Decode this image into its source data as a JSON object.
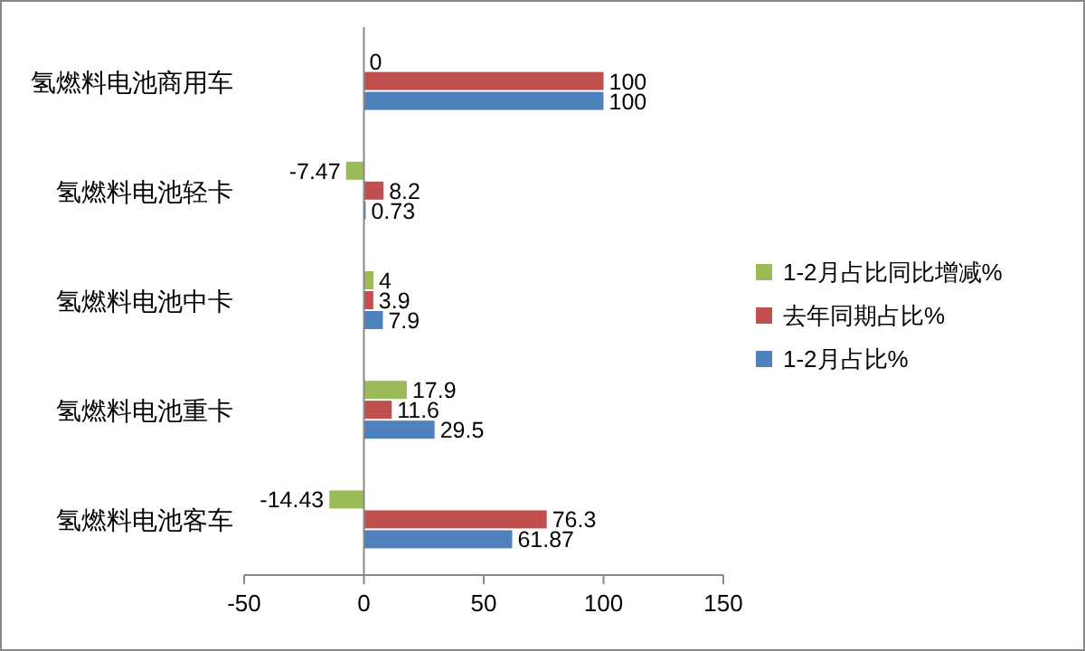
{
  "chart_data": {
    "type": "bar",
    "orientation": "horizontal",
    "categories": [
      "氢燃料电池商用车",
      "氢燃料电池轻卡",
      "氢燃料电池中卡",
      "氢燃料电池重卡",
      "氢燃料电池客车"
    ],
    "series": [
      {
        "name": "1-2月占比同比增减%",
        "color": "#9bbb59",
        "values": [
          0,
          -7.47,
          4,
          17.9,
          -14.43
        ]
      },
      {
        "name": "去年同期占比%",
        "color": "#c0504d",
        "values": [
          100,
          8.2,
          3.9,
          11.6,
          76.3
        ]
      },
      {
        "name": "1-2月占比%",
        "color": "#4f81bd",
        "values": [
          100,
          0.73,
          7.9,
          29.5,
          61.87
        ]
      }
    ],
    "xlim": [
      -50,
      150
    ],
    "xticks": [
      -50,
      0,
      50,
      100,
      150
    ],
    "legend": "right",
    "data_labels": true
  }
}
